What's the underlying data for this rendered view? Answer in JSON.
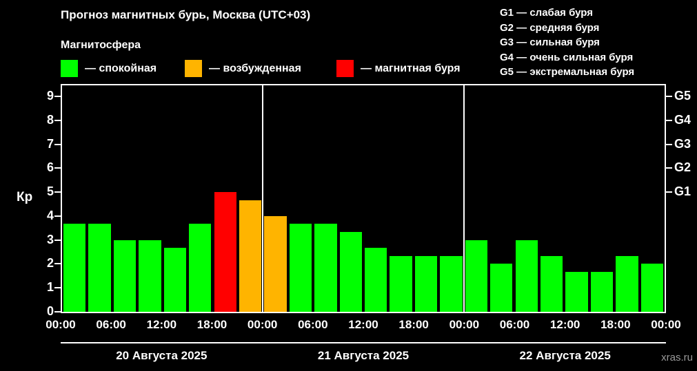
{
  "header": {
    "title": "Прогноз магнитных бурь, Москва (UTC+03)",
    "subtitle": "Магнитосфера"
  },
  "legend": [
    {
      "key": "quiet",
      "color": "#00ff00",
      "label": "— спокойная"
    },
    {
      "key": "excited",
      "color": "#ffb400",
      "label": "— возбужденная"
    },
    {
      "key": "storm",
      "color": "#ff0000",
      "label": "— магнитная буря"
    }
  ],
  "g_scale_legend": [
    "G1 — слабая буря",
    "G2 — средняя буря",
    "G3 — сильная буря",
    "G4 — очень сильная буря",
    "G5 — экстремальная буря"
  ],
  "watermark": "xras.ru",
  "chart_data": {
    "type": "bar",
    "title": "Прогноз магнитных бурь, Москва (UTC+03)",
    "ylabel": "Кр",
    "ylim": [
      0,
      9.5
    ],
    "yticks": [
      0,
      1,
      2,
      3,
      4,
      5,
      6,
      7,
      8,
      9
    ],
    "right_axis_ticks": [
      {
        "value": 5,
        "label": "G1"
      },
      {
        "value": 6,
        "label": "G2"
      },
      {
        "value": 7,
        "label": "G3"
      },
      {
        "value": 8,
        "label": "G4"
      },
      {
        "value": 9,
        "label": "G5"
      }
    ],
    "x_tick_labels": [
      "00:00",
      "06:00",
      "12:00",
      "18:00",
      "00:00",
      "06:00",
      "12:00",
      "18:00",
      "00:00",
      "06:00",
      "12:00",
      "18:00",
      "00:00"
    ],
    "interval_hours": 3,
    "days": [
      {
        "label": "20 Августа 2025",
        "values": [
          3.67,
          3.67,
          3.0,
          3.0,
          2.67,
          3.67,
          5.0,
          4.67
        ]
      },
      {
        "label": "21 Августа 2025",
        "values": [
          4.0,
          3.67,
          3.67,
          3.33,
          2.67,
          2.33,
          2.33,
          2.33
        ]
      },
      {
        "label": "22 Августа 2025",
        "values": [
          3.0,
          2.0,
          3.0,
          2.33,
          1.67,
          1.67,
          2.33,
          2.0
        ]
      }
    ],
    "thresholds": {
      "excited": 4,
      "storm": 5
    },
    "colors": {
      "quiet": "#00ff00",
      "excited": "#ffb400",
      "storm": "#ff0000"
    },
    "grid": false,
    "legend_position": "top-left"
  }
}
